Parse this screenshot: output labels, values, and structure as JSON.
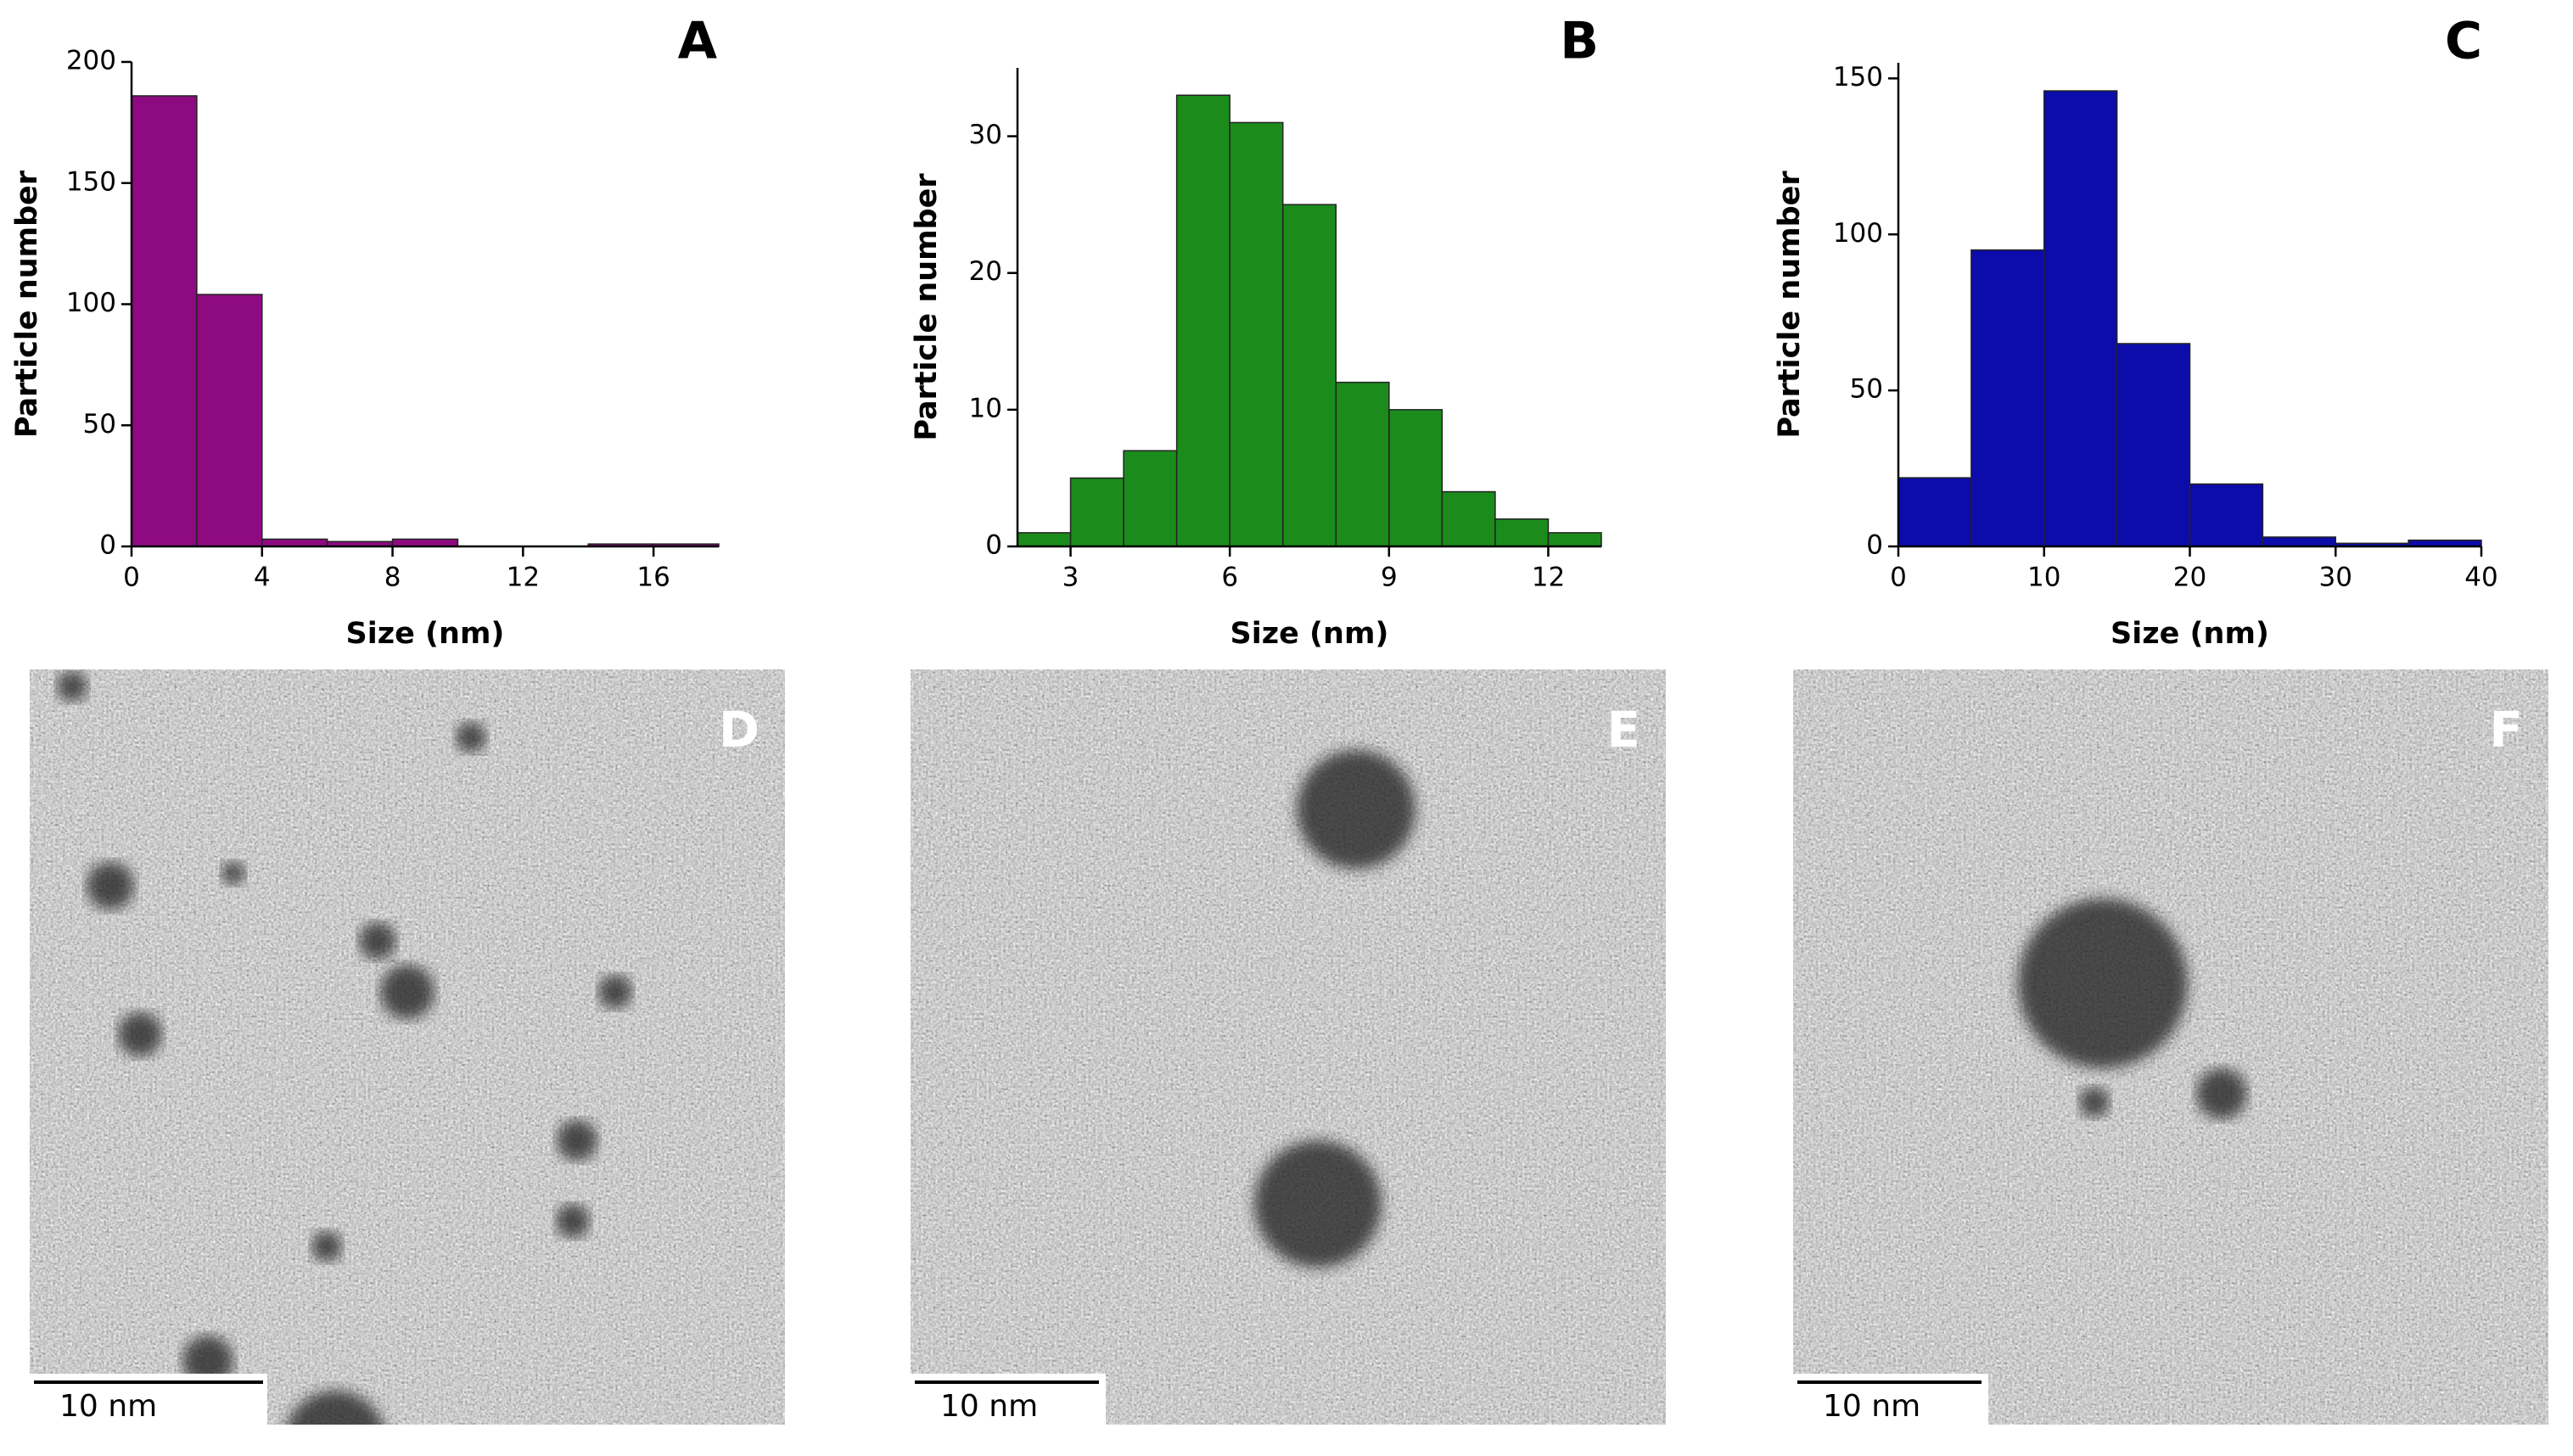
{
  "chart_data": [
    {
      "type": "histogram",
      "label": "A",
      "x_label": "Size (nm)",
      "y_label": "Particle number",
      "bins": [
        0,
        2,
        4,
        6,
        8,
        10,
        12,
        14,
        16,
        18
      ],
      "counts": [
        186,
        104,
        3,
        2,
        3,
        0,
        0,
        1,
        1
      ],
      "color": "#8e0a80",
      "xlim": [
        0,
        18
      ],
      "xticks": [
        0,
        4,
        8,
        12,
        16
      ],
      "ylim": [
        0,
        200
      ],
      "yticks": [
        0,
        50,
        100,
        150,
        200
      ]
    },
    {
      "type": "histogram",
      "label": "B",
      "x_label": "Size (nm)",
      "y_label": "Particle number",
      "bins": [
        2,
        3,
        4,
        5,
        6,
        7,
        8,
        9,
        10,
        11,
        12,
        13
      ],
      "counts": [
        1,
        5,
        7,
        33,
        31,
        25,
        12,
        10,
        4,
        2,
        1
      ],
      "color": "#1b8c1b",
      "xlim": [
        2,
        13
      ],
      "xticks": [
        3,
        6,
        9,
        12
      ],
      "ylim": [
        0,
        35
      ],
      "yticks": [
        0,
        10,
        20,
        30
      ]
    },
    {
      "type": "histogram",
      "label": "C",
      "x_label": "Size (nm)",
      "y_label": "Particle number",
      "bins": [
        0,
        5,
        10,
        15,
        20,
        25,
        30,
        35,
        40
      ],
      "counts": [
        22,
        95,
        146,
        65,
        20,
        3,
        1,
        2
      ],
      "color": "#0c0cab",
      "xlim": [
        0,
        40
      ],
      "xticks": [
        0,
        10,
        20,
        30,
        40
      ],
      "ylim": [
        0,
        155
      ],
      "yticks": [
        0,
        50,
        100,
        150
      ]
    }
  ],
  "images": [
    {
      "label": "D",
      "scale_bar": "10 nm"
    },
    {
      "label": "E",
      "scale_bar": "10 nm"
    },
    {
      "label": "F",
      "scale_bar": "10 nm"
    }
  ]
}
